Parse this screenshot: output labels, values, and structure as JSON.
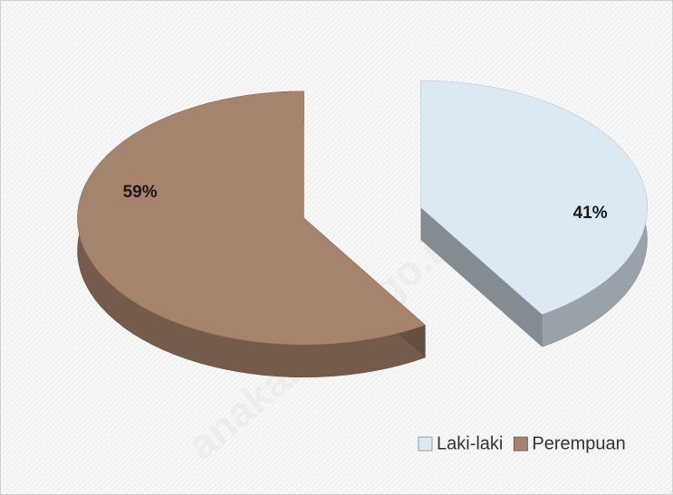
{
  "chart_data": {
    "type": "pie3d",
    "categories": [
      "Laki-laki",
      "Perempuan"
    ],
    "series": [
      {
        "name": "Laki-laki",
        "color": "#dce8f2"
      },
      {
        "name": "Perempuan",
        "color": "#a6836c"
      }
    ],
    "values": [
      41,
      59
    ],
    "value_labels": [
      "41%",
      "59%"
    ],
    "legend": "bottom-right",
    "watermark": "anakab.bps.go.id"
  }
}
